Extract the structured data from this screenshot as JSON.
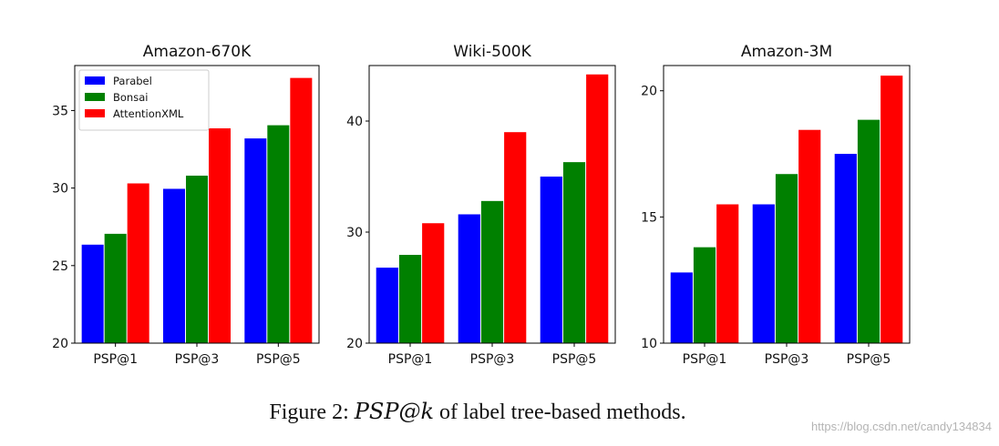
{
  "chart_data": [
    {
      "type": "bar",
      "title": "Amazon-670K",
      "categories": [
        "PSP@1",
        "PSP@3",
        "PSP@5"
      ],
      "ylim": [
        20,
        37.9
      ],
      "yticks": [
        20,
        25,
        30,
        35
      ],
      "legend": "top-left",
      "series": [
        {
          "name": "Parabel",
          "color": "#0000ff",
          "values": [
            26.35,
            29.95,
            33.2
          ]
        },
        {
          "name": "Bonsai",
          "color": "#008000",
          "values": [
            27.05,
            30.8,
            34.05
          ]
        },
        {
          "name": "AttentionXML",
          "color": "#ff0000",
          "values": [
            30.3,
            33.85,
            37.1
          ]
        }
      ]
    },
    {
      "type": "bar",
      "title": "Wiki-500K",
      "categories": [
        "PSP@1",
        "PSP@3",
        "PSP@5"
      ],
      "ylim": [
        20,
        45
      ],
      "yticks": [
        20,
        30,
        40
      ],
      "series": [
        {
          "name": "Parabel",
          "color": "#0000ff",
          "values": [
            26.8,
            31.6,
            35.0
          ]
        },
        {
          "name": "Bonsai",
          "color": "#008000",
          "values": [
            27.95,
            32.8,
            36.3
          ]
        },
        {
          "name": "AttentionXML",
          "color": "#ff0000",
          "values": [
            30.8,
            39.0,
            44.2
          ]
        }
      ]
    },
    {
      "type": "bar",
      "title": "Amazon-3M",
      "categories": [
        "PSP@1",
        "PSP@3",
        "PSP@5"
      ],
      "ylim": [
        10,
        21
      ],
      "yticks": [
        10,
        15,
        20
      ],
      "series": [
        {
          "name": "Parabel",
          "color": "#0000ff",
          "values": [
            12.8,
            15.5,
            17.5
          ]
        },
        {
          "name": "Bonsai",
          "color": "#008000",
          "values": [
            13.8,
            16.7,
            18.85
          ]
        },
        {
          "name": "AttentionXML",
          "color": "#ff0000",
          "values": [
            15.5,
            18.45,
            20.6
          ]
        }
      ]
    }
  ],
  "caption": {
    "prefix": "Figure 2: ",
    "math": "PSP@k",
    "suffix": " of label tree-based methods."
  },
  "watermark": "https://blog.csdn.net/candy134834"
}
